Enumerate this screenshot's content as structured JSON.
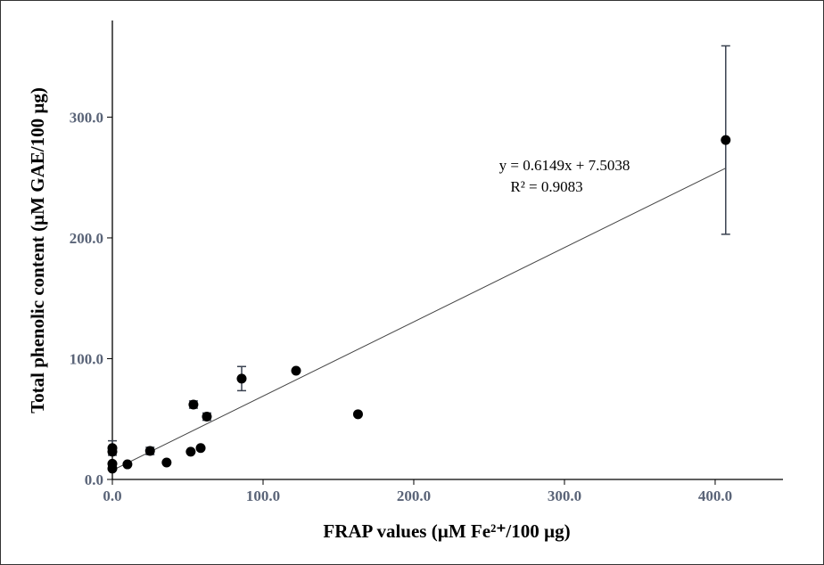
{
  "chart_data": {
    "type": "scatter",
    "xlabel": "FRAP values (µM Fe²⁺/100 µg)",
    "ylabel": "Total phenolic content (µM GAE/100 µg)",
    "xlim": [
      0,
      445
    ],
    "ylim": [
      0,
      380
    ],
    "xticks": [
      {
        "v": 0,
        "label": "0.0"
      },
      {
        "v": 100,
        "label": "100.0"
      },
      {
        "v": 200,
        "label": "200.0"
      },
      {
        "v": 300,
        "label": "300.0"
      },
      {
        "v": 400,
        "label": "400.0"
      }
    ],
    "yticks": [
      {
        "v": 0,
        "label": "0.0"
      },
      {
        "v": 100,
        "label": "100.0"
      },
      {
        "v": 200,
        "label": "200.0"
      },
      {
        "v": 300,
        "label": "300.0"
      }
    ],
    "grid": false,
    "points": [
      {
        "x": 0,
        "y": 26,
        "err": 6
      },
      {
        "x": 0,
        "y": 23,
        "err": 0
      },
      {
        "x": 0,
        "y": 13,
        "err": 0
      },
      {
        "x": 0,
        "y": 9,
        "err": 0
      },
      {
        "x": 10,
        "y": 12.5,
        "err": 0
      },
      {
        "x": 25,
        "y": 23.6,
        "err": 3
      },
      {
        "x": 36,
        "y": 14,
        "err": 0
      },
      {
        "x": 52,
        "y": 23,
        "err": 0
      },
      {
        "x": 53.8,
        "y": 62,
        "err": 3
      },
      {
        "x": 58.6,
        "y": 26,
        "err": 0
      },
      {
        "x": 62.7,
        "y": 52,
        "err": 3
      },
      {
        "x": 85.8,
        "y": 83.5,
        "err": 10
      },
      {
        "x": 121.9,
        "y": 90,
        "err": 0
      },
      {
        "x": 163,
        "y": 54,
        "err": 0
      },
      {
        "x": 407,
        "y": 281,
        "err": 78
      }
    ],
    "trendline": {
      "slope": 0.6149,
      "intercept": 7.5038,
      "x_range": [
        0,
        407
      ]
    },
    "annotations": {
      "equation": "y = 0.6149x + 7.5038",
      "r2": "R² = 0.9083"
    }
  }
}
